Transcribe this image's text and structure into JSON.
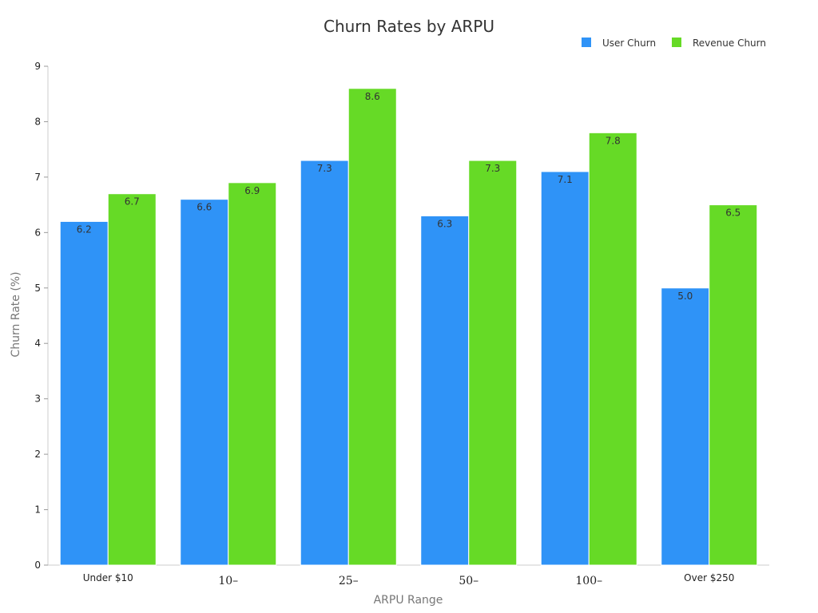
{
  "chart_data": {
    "type": "bar",
    "title": "Churn Rates by ARPU",
    "xlabel": "ARPU Range",
    "ylabel": "Churn Rate (%)",
    "ylim": [
      0,
      9
    ],
    "yticks": [
      0,
      1,
      2,
      3,
      4,
      5,
      6,
      7,
      8,
      9
    ],
    "categories": [
      "Under $10",
      "10–",
      "25–",
      "50–",
      "100–",
      "Over $250"
    ],
    "series": [
      {
        "name": "User Churn",
        "color": "#2f93f7",
        "values": [
          6.2,
          6.6,
          7.3,
          6.3,
          7.1,
          5.0
        ],
        "labels": [
          "6.2",
          "6.6",
          "7.3",
          "6.3",
          "7.1",
          "5.0"
        ]
      },
      {
        "name": "Revenue Churn",
        "color": "#66da26",
        "values": [
          6.7,
          6.9,
          8.6,
          7.3,
          7.8,
          6.5
        ],
        "labels": [
          "6.7",
          "6.9",
          "8.6",
          "7.3",
          "7.8",
          "6.5"
        ]
      }
    ],
    "grid": false,
    "legend": "top-right"
  }
}
